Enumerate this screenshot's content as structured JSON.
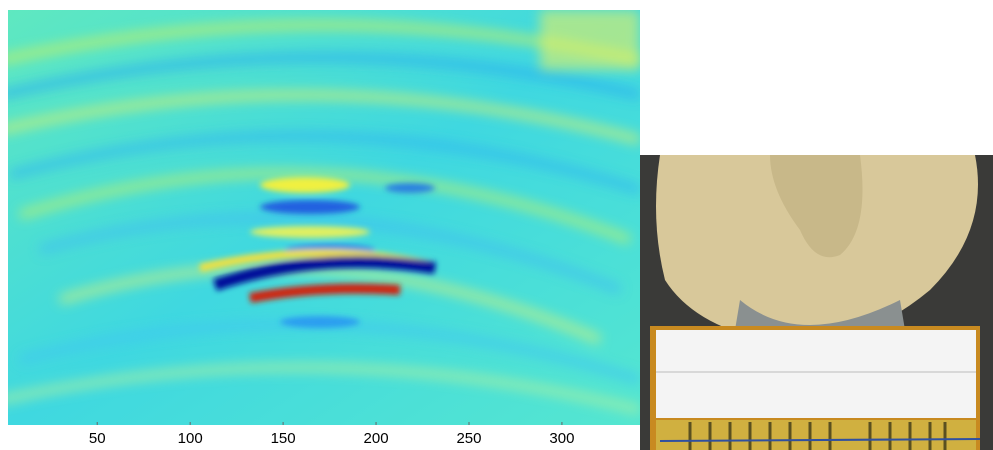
{
  "chart_data": {
    "type": "image",
    "xlim": [
      2,
      342
    ],
    "xticks": [
      50,
      100,
      150,
      200,
      250,
      300
    ]
  }
}
